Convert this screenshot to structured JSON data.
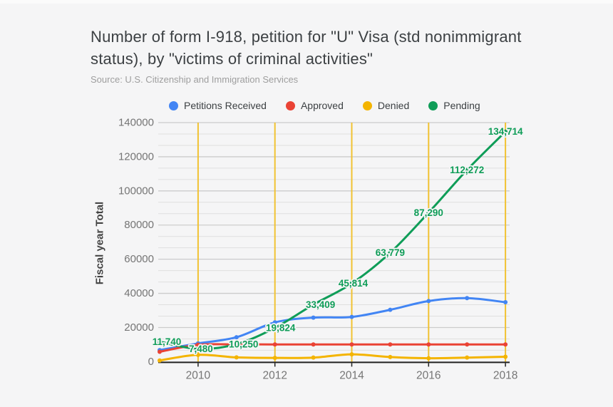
{
  "header": {
    "title": "Number of form I-918, petition for \"U\" Visa (std nonimmigrant status), by \"victims of criminal activities\"",
    "source": "Source: U.S. Citizenship and Immigration Services"
  },
  "legend": {
    "items": [
      {
        "label": "Petitions Received",
        "color": "#4285f4"
      },
      {
        "label": "Approved",
        "color": "#ea4335"
      },
      {
        "label": "Denied",
        "color": "#f4b400"
      },
      {
        "label": "Pending",
        "color": "#0f9d58"
      }
    ]
  },
  "chart_data": {
    "type": "line",
    "title": "Number of form I-918, petition for \"U\" Visa (std nonimmigrant status), by \"victims of criminal activities\"",
    "xlabel": "",
    "ylabel": "Fiscal year Total",
    "x": [
      2009,
      2010,
      2011,
      2012,
      2013,
      2014,
      2015,
      2016,
      2017,
      2018
    ],
    "ylim": [
      0,
      140000
    ],
    "y_major_step": 20000,
    "y_minor_divisions": 3,
    "grid": {
      "horizontal": true,
      "vertical": true
    },
    "legend_position": "top",
    "series": [
      {
        "name": "Petitions Received",
        "color": "#4285f4",
        "values": [
          6800,
          10700,
          14300,
          23000,
          25800,
          26200,
          30400,
          35500,
          37200,
          34800
        ]
      },
      {
        "name": "Approved",
        "color": "#ea4335",
        "values": [
          5800,
          9900,
          10100,
          10100,
          10100,
          10100,
          10100,
          10100,
          10100,
          10100
        ]
      },
      {
        "name": "Denied",
        "color": "#f4b400",
        "values": [
          700,
          4000,
          2500,
          2200,
          2400,
          4300,
          2700,
          2000,
          2400,
          2900
        ]
      },
      {
        "name": "Pending",
        "color": "#0f9d58",
        "values": [
          11740,
          7480,
          10250,
          19824,
          33409,
          45814,
          63779,
          87290,
          112272,
          134714
        ],
        "data_labels": [
          "11,740",
          "7,480",
          "10,250",
          "19,824",
          "33,409",
          "45,814",
          "63,779",
          "87,290",
          "112,272",
          "134,714"
        ]
      }
    ],
    "axis": {
      "y_title": "Fiscal year Total",
      "y_ticks": [
        "0",
        "20000",
        "40000",
        "60000",
        "80000",
        "100000",
        "120000",
        "140000"
      ],
      "x_ticks": [
        "2010",
        "2012",
        "2014",
        "2016",
        "2018"
      ]
    }
  },
  "colors": {
    "background": "#f5f5f6",
    "vertical_gridline": "#f1c232",
    "minor_gridline": "#dfdfdf",
    "major_gridline": "#cccccc",
    "axis_line": "#212121",
    "tick_label": "#757575",
    "title_text": "#3c4043",
    "source_text": "#9e9e9e",
    "data_label_text": "#0f9d58"
  }
}
